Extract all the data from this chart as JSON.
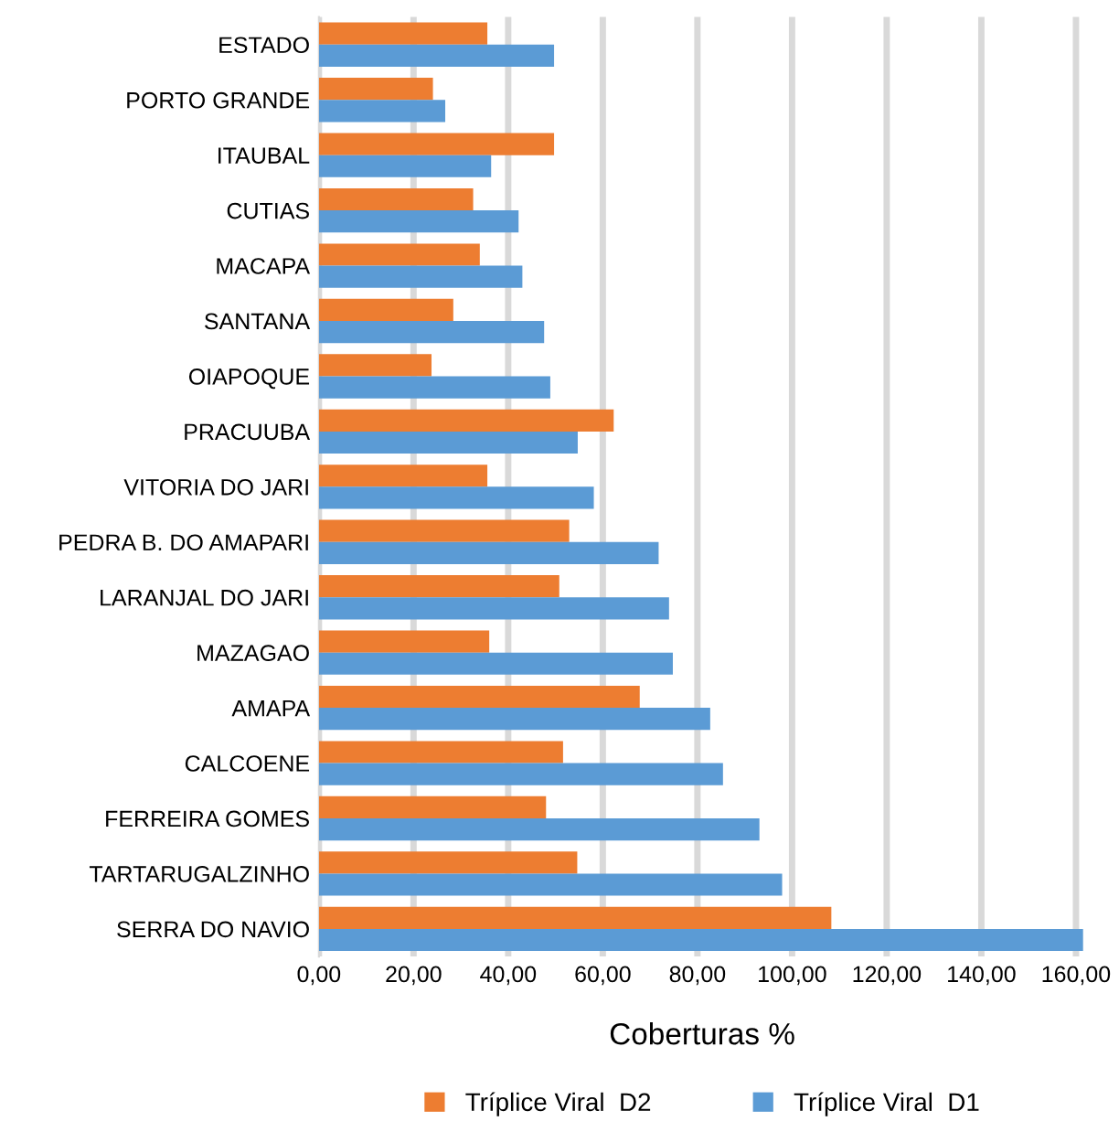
{
  "chart_data": {
    "type": "bar",
    "orientation": "horizontal",
    "xlabel": "Coberturas %",
    "categories": [
      "ESTADO",
      "PORTO GRANDE",
      "ITAUBAL",
      "CUTIAS",
      "MACAPA",
      "SANTANA",
      "OIAPOQUE",
      "PRACUUBA",
      "VITORIA DO JARI",
      "PEDRA B. DO AMAPARI",
      "LARANJAL DO JARI",
      "MAZAGAO",
      "AMAPA",
      "CALCOENE",
      "FERREIRA GOMES",
      "TARTARUGALZINHO",
      "SERRA DO NAVIO"
    ],
    "series": [
      {
        "name": "Tríplice Viral  D2",
        "color": "#ed7d31",
        "values": [
          35.6,
          24.1,
          49.7,
          32.6,
          34.0,
          28.4,
          23.8,
          62.3,
          35.6,
          52.9,
          50.8,
          36.0,
          67.8,
          51.6,
          48.0,
          54.6,
          108.3
        ]
      },
      {
        "name": "Tríplice Viral  D1",
        "color": "#5b9bd5",
        "values": [
          49.7,
          26.7,
          36.4,
          42.2,
          43.0,
          47.6,
          48.9,
          54.7,
          58.1,
          71.8,
          74.0,
          74.8,
          82.7,
          85.4,
          93.1,
          97.9,
          161.5
        ]
      }
    ],
    "xlim": [
      0,
      162
    ],
    "xticks": [
      {
        "value": 0,
        "label": "0,00"
      },
      {
        "value": 20,
        "label": "20,00"
      },
      {
        "value": 40,
        "label": "40,00"
      },
      {
        "value": 60,
        "label": "60,00"
      },
      {
        "value": 80,
        "label": "80,00"
      },
      {
        "value": 100,
        "label": "100,00"
      },
      {
        "value": 120,
        "label": "120,00"
      },
      {
        "value": 140,
        "label": "140,00"
      },
      {
        "value": 160,
        "label": "160,00"
      }
    ],
    "grid": "x",
    "legend": "bottom"
  }
}
